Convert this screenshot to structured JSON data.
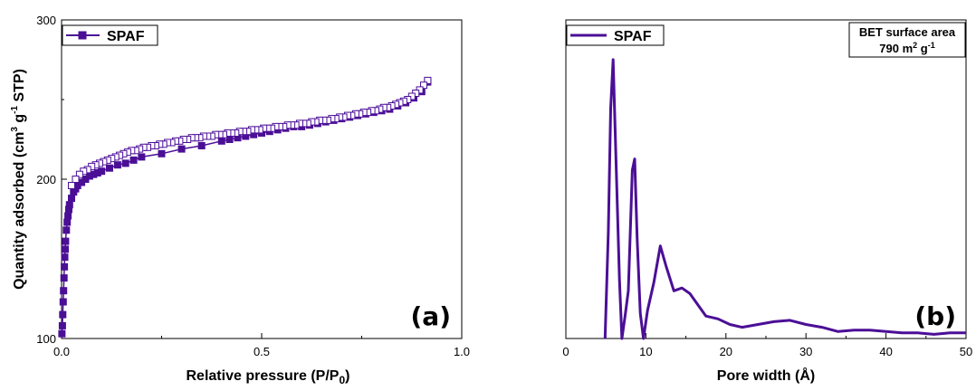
{
  "chart_data": [
    {
      "type": "line",
      "panel_label": "(a)",
      "xlabel": "Relative pressure (P/P",
      "xlabel_sub": "0",
      "xlabel_end": ")",
      "ylabel": "Quantity adsorbed (cm",
      "ylabel_sup1": "3",
      "ylabel_mid": " g",
      "ylabel_sup2": "-1",
      "ylabel_end": " STP)",
      "xlim": [
        0,
        1.0
      ],
      "ylim": [
        100,
        300
      ],
      "xticks": [
        0.0,
        0.5,
        1.0
      ],
      "xtick_labels": [
        "0.0",
        "0.5",
        "1.0"
      ],
      "yticks": [
        100,
        200,
        300
      ],
      "ytick_labels": [
        "100",
        "200",
        "300"
      ],
      "legend": {
        "label": "SPAF",
        "placement": "top-left"
      },
      "color": "#4b0f96",
      "series": [
        {
          "name": "SPAF",
          "marker": "filled-square",
          "role": "adsorption",
          "x": [
            0.001,
            0.002,
            0.003,
            0.004,
            0.005,
            0.006,
            0.007,
            0.008,
            0.009,
            0.01,
            0.012,
            0.014,
            0.016,
            0.018,
            0.02,
            0.025,
            0.03,
            0.035,
            0.04,
            0.05,
            0.06,
            0.07,
            0.08,
            0.09,
            0.1,
            0.12,
            0.14,
            0.16,
            0.18,
            0.2,
            0.25,
            0.3,
            0.35,
            0.4,
            0.42,
            0.44,
            0.46,
            0.48,
            0.5,
            0.52,
            0.54,
            0.56,
            0.58,
            0.6,
            0.62,
            0.64,
            0.66,
            0.68,
            0.7,
            0.72,
            0.74,
            0.76,
            0.78,
            0.8,
            0.82,
            0.84,
            0.86,
            0.88,
            0.9,
            0.915
          ],
          "y": [
            103,
            108,
            115,
            123,
            130,
            138,
            145,
            151,
            156,
            161,
            168,
            173,
            177,
            181,
            184,
            188,
            192,
            194,
            196,
            198,
            200,
            202,
            203,
            204,
            205,
            207,
            209,
            210,
            212,
            214,
            216,
            219,
            221,
            224,
            225,
            226,
            227,
            228,
            229,
            230,
            231,
            232,
            233,
            233,
            234,
            235,
            236,
            237,
            238,
            239,
            240,
            241,
            242,
            243,
            244,
            246,
            248,
            251,
            255,
            261
          ]
        },
        {
          "name": "",
          "marker": "open-square",
          "role": "desorption",
          "x": [
            0.915,
            0.905,
            0.895,
            0.885,
            0.875,
            0.865,
            0.855,
            0.845,
            0.835,
            0.825,
            0.815,
            0.805,
            0.795,
            0.785,
            0.775,
            0.765,
            0.755,
            0.745,
            0.735,
            0.725,
            0.715,
            0.705,
            0.695,
            0.685,
            0.675,
            0.665,
            0.655,
            0.645,
            0.635,
            0.625,
            0.615,
            0.605,
            0.595,
            0.585,
            0.575,
            0.565,
            0.555,
            0.545,
            0.535,
            0.525,
            0.515,
            0.505,
            0.495,
            0.485,
            0.475,
            0.465,
            0.455,
            0.445,
            0.435,
            0.425,
            0.415,
            0.405,
            0.395,
            0.385,
            0.375,
            0.365,
            0.355,
            0.345,
            0.335,
            0.325,
            0.315,
            0.305,
            0.295,
            0.285,
            0.275,
            0.265,
            0.255,
            0.245,
            0.235,
            0.225,
            0.215,
            0.205,
            0.195,
            0.185,
            0.175,
            0.165,
            0.155,
            0.145,
            0.135,
            0.125,
            0.115,
            0.105,
            0.095,
            0.085,
            0.075,
            0.065,
            0.055,
            0.045,
            0.035,
            0.025
          ],
          "y": [
            262,
            259,
            256,
            254,
            252,
            250,
            249,
            248,
            247,
            246,
            245,
            245,
            244,
            243,
            243,
            242,
            242,
            241,
            241,
            240,
            240,
            239,
            239,
            238,
            238,
            237,
            237,
            237,
            236,
            236,
            235,
            235,
            235,
            234,
            234,
            234,
            233,
            233,
            233,
            232,
            232,
            232,
            231,
            231,
            231,
            230,
            230,
            230,
            229,
            229,
            229,
            228,
            228,
            228,
            227,
            227,
            227,
            226,
            226,
            226,
            225,
            225,
            224,
            224,
            223,
            223,
            222,
            222,
            221,
            221,
            220,
            220,
            219,
            218,
            218,
            217,
            216,
            215,
            214,
            213,
            212,
            211,
            210,
            209,
            208,
            206,
            205,
            203,
            200,
            196
          ]
        }
      ]
    },
    {
      "type": "line",
      "panel_label": "(b)",
      "xlabel": "Pore width (Å)",
      "ylabel": "",
      "xlim": [
        0,
        50
      ],
      "ylim": [
        0,
        1
      ],
      "xticks": [
        0,
        10,
        20,
        30,
        40,
        50
      ],
      "xtick_labels": [
        "0",
        "10",
        "20",
        "30",
        "40",
        "50"
      ],
      "yticks": [],
      "legend": {
        "label": "SPAF",
        "placement": "top-left"
      },
      "annotation": {
        "line1": "BET surface area",
        "line2_value": "790 m",
        "line2_sup1": "2",
        "line2_mid": " g",
        "line2_sup2": "-1",
        "placement": "top-right"
      },
      "color": "#4b0f96",
      "series": [
        {
          "name": "SPAF",
          "x": [
            4.9,
            5.3,
            5.6,
            5.9,
            6.3,
            6.7,
            7.0,
            7.4,
            7.8,
            8.3,
            8.6,
            8.9,
            9.3,
            9.7,
            10.2,
            11.0,
            11.8,
            12.5,
            13.5,
            14.5,
            15.5,
            17.5,
            19.0,
            20.5,
            22.0,
            24.0,
            26.0,
            28.0,
            30.0,
            32.0,
            34.0,
            36.0,
            38.0,
            40.0,
            42.0,
            44.0,
            46.0,
            48.0,
            50.0
          ],
          "y": [
            0.0,
            0.38,
            0.82,
            0.994,
            0.6,
            0.21,
            0.0,
            0.08,
            0.17,
            0.6,
            0.64,
            0.36,
            0.09,
            0.0,
            0.1,
            0.2,
            0.33,
            0.26,
            0.17,
            0.18,
            0.16,
            0.08,
            0.07,
            0.05,
            0.04,
            0.05,
            0.06,
            0.065,
            0.05,
            0.04,
            0.025,
            0.03,
            0.03,
            0.025,
            0.02,
            0.02,
            0.015,
            0.02,
            0.02
          ]
        }
      ]
    }
  ]
}
